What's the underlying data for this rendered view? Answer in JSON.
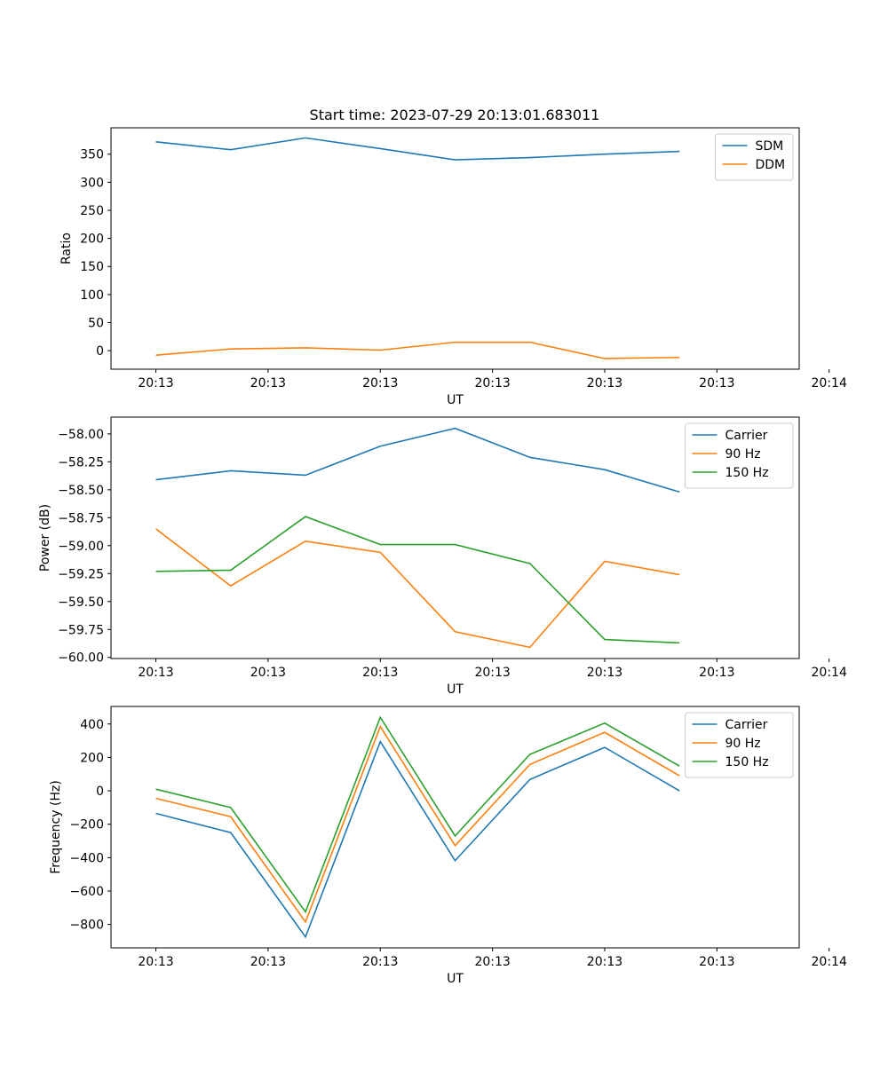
{
  "figure_title": "Start time: 2023-07-29 20:13:01.683011",
  "colors": {
    "blue": "#1f77b4",
    "orange": "#ff7f0e",
    "green": "#2ca02c"
  },
  "chart_data": [
    {
      "type": "line",
      "title": "Start time: 2023-07-29 20:13:01.683011",
      "xlabel": "UT",
      "ylabel": "Ratio",
      "xlim": [
        -0.6,
        8.6
      ],
      "ylim": [
        -33,
        397
      ],
      "x_ticks": [
        0,
        1.5,
        3,
        4.5,
        6,
        7.5,
        9
      ],
      "x_tick_labels": [
        "20:13",
        "20:13",
        "20:13",
        "20:13",
        "20:13",
        "20:13",
        "20:14"
      ],
      "y_ticks": [
        0,
        50,
        100,
        150,
        200,
        250,
        300,
        350
      ],
      "y_tick_labels": [
        "0",
        "50",
        "100",
        "150",
        "200",
        "250",
        "300",
        "350"
      ],
      "legend_position": "top-right",
      "x": [
        0,
        1,
        2,
        3,
        4,
        5,
        6,
        7
      ],
      "series": [
        {
          "name": "SDM",
          "color": "#1f77b4",
          "values": [
            372,
            358,
            379,
            360,
            340,
            344,
            350,
            355
          ]
        },
        {
          "name": "DDM",
          "color": "#ff7f0e",
          "values": [
            -8,
            3,
            5,
            1,
            15,
            15,
            -14,
            -12
          ]
        }
      ]
    },
    {
      "type": "line",
      "title": "",
      "xlabel": "UT",
      "ylabel": "Power (dB)",
      "xlim": [
        -0.6,
        8.6
      ],
      "ylim": [
        -60.01,
        -57.85
      ],
      "x_ticks": [
        0,
        1.5,
        3,
        4.5,
        6,
        7.5,
        9
      ],
      "x_tick_labels": [
        "20:13",
        "20:13",
        "20:13",
        "20:13",
        "20:13",
        "20:13",
        "20:14"
      ],
      "y_ticks": [
        -60.0,
        -59.75,
        -59.5,
        -59.25,
        -59.0,
        -58.75,
        -58.5,
        -58.25,
        -58.0
      ],
      "y_tick_labels": [
        "−60.00",
        "−59.75",
        "−59.50",
        "−59.25",
        "−59.00",
        "−58.75",
        "−58.50",
        "−58.25",
        "−58.00"
      ],
      "legend_position": "top-right",
      "x": [
        0,
        1,
        2,
        3,
        4,
        5,
        6,
        7
      ],
      "series": [
        {
          "name": "Carrier",
          "color": "#1f77b4",
          "values": [
            -58.41,
            -58.33,
            -58.37,
            -58.11,
            -57.95,
            -58.21,
            -58.32,
            -58.52
          ]
        },
        {
          "name": "90 Hz",
          "color": "#ff7f0e",
          "values": [
            -58.85,
            -59.36,
            -58.96,
            -59.06,
            -59.77,
            -59.91,
            -59.14,
            -59.26
          ]
        },
        {
          "name": "150 Hz",
          "color": "#2ca02c",
          "values": [
            -59.23,
            -59.22,
            -58.74,
            -58.99,
            -58.99,
            -59.16,
            -59.84,
            -59.87
          ]
        }
      ]
    },
    {
      "type": "line",
      "title": "",
      "xlabel": "UT",
      "ylabel": "Frequency (Hz)",
      "xlim": [
        -0.6,
        8.6
      ],
      "ylim": [
        -940,
        505
      ],
      "x_ticks": [
        0,
        1.5,
        3,
        4.5,
        6,
        7.5,
        9
      ],
      "x_tick_labels": [
        "20:13",
        "20:13",
        "20:13",
        "20:13",
        "20:13",
        "20:13",
        "20:14"
      ],
      "y_ticks": [
        -800,
        -600,
        -400,
        -200,
        0,
        200,
        400
      ],
      "y_tick_labels": [
        "−800",
        "−600",
        "−400",
        "−200",
        "0",
        "200",
        "400"
      ],
      "legend_position": "top-right",
      "x": [
        0,
        1,
        2,
        3,
        4,
        5,
        6,
        7
      ],
      "series": [
        {
          "name": "Carrier",
          "color": "#1f77b4",
          "values": [
            -135,
            -250,
            -875,
            295,
            -418,
            68,
            260,
            0
          ]
        },
        {
          "name": "90 Hz",
          "color": "#ff7f0e",
          "values": [
            -45,
            -155,
            -785,
            385,
            -328,
            158,
            350,
            90
          ]
        },
        {
          "name": "150 Hz",
          "color": "#2ca02c",
          "values": [
            10,
            -100,
            -725,
            440,
            -270,
            218,
            405,
            148
          ]
        }
      ]
    }
  ]
}
